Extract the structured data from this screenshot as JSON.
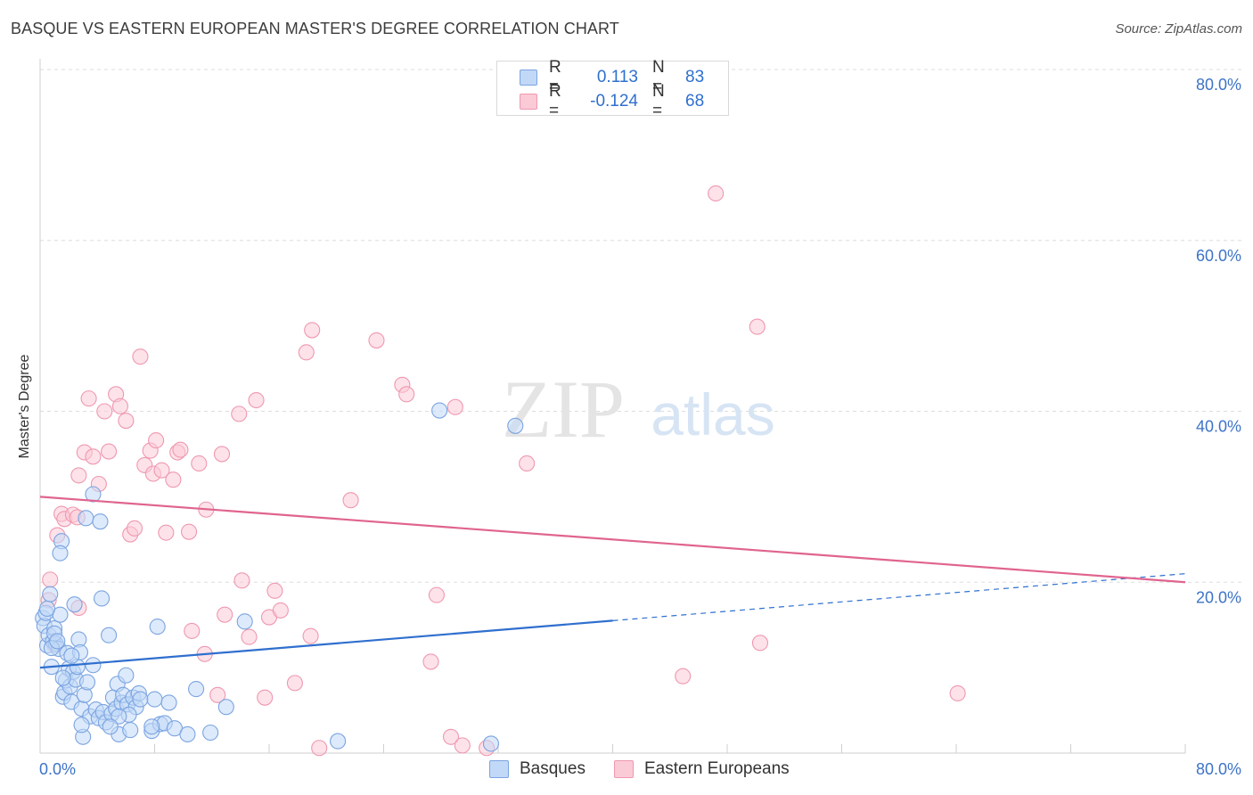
{
  "title": "BASQUE VS EASTERN EUROPEAN MASTER'S DEGREE CORRELATION CHART",
  "source": "Source: ZipAtlas.com",
  "watermark": {
    "zip": "ZIP",
    "atlas": "atlas"
  },
  "legend_top": [
    {
      "r_label": "R =",
      "r_value": "0.113",
      "n_label": "N =",
      "n_value": "83",
      "fill": "#c1d8f7",
      "stroke": "#7ba4e0"
    },
    {
      "r_label": "R =",
      "r_value": "-0.124",
      "n_label": "N =",
      "n_value": "68",
      "fill": "#fbcad7",
      "stroke": "#ef98b0"
    }
  ],
  "legend_bottom": [
    {
      "label": "Basques",
      "fill": "#c1d8f7",
      "stroke": "#7ba4e0"
    },
    {
      "label": "Eastern Europeans",
      "fill": "#fbcad7",
      "stroke": "#ef98b0"
    }
  ],
  "chart_data": {
    "type": "scatter",
    "title": "BASQUE VS EASTERN EUROPEAN MASTER'S DEGREE CORRELATION CHART",
    "xlabel": "",
    "ylabel": "Master's Degree",
    "xlim": [
      0,
      80
    ],
    "ylim": [
      0,
      80
    ],
    "x_tick_labels": [
      "0.0%",
      "80.0%"
    ],
    "y_tick_labels": [
      "20.0%",
      "40.0%",
      "60.0%",
      "80.0%"
    ],
    "y_ticks": [
      20,
      40,
      60,
      80
    ],
    "colors": {
      "basques": "#2f6fce",
      "eastern": "#e0648f",
      "axis_text": "#3d73c8"
    },
    "series": [
      {
        "name": "Basques",
        "color": "#7ba4e0",
        "fill": "#c1d8f7",
        "trend": {
          "x0": 0,
          "y0": 10.0,
          "x1": 40,
          "y1": 15.5,
          "dash_x1": 80,
          "dash_y1": 21.0,
          "color": "#2f6fce"
        },
        "points": [
          [
            0.2,
            15.8
          ],
          [
            0.3,
            14.9
          ],
          [
            0.4,
            16.4
          ],
          [
            0.5,
            12.6
          ],
          [
            0.6,
            13.8
          ],
          [
            0.7,
            18.6
          ],
          [
            0.8,
            10.1
          ],
          [
            0.9,
            13.1
          ],
          [
            1.0,
            14.6
          ],
          [
            1.1,
            12.8
          ],
          [
            1.3,
            12.2
          ],
          [
            1.4,
            16.2
          ],
          [
            1.5,
            24.8
          ],
          [
            1.4,
            23.4
          ],
          [
            1.6,
            6.6
          ],
          [
            1.7,
            7.1
          ],
          [
            1.8,
            8.5
          ],
          [
            1.9,
            11.7
          ],
          [
            2.0,
            9.9
          ],
          [
            2.1,
            7.8
          ],
          [
            2.2,
            6.0
          ],
          [
            2.3,
            9.5
          ],
          [
            2.4,
            17.4
          ],
          [
            2.5,
            8.6
          ],
          [
            2.6,
            10.1
          ],
          [
            2.7,
            13.3
          ],
          [
            2.8,
            11.8
          ],
          [
            2.9,
            5.2
          ],
          [
            3.0,
            1.9
          ],
          [
            3.1,
            6.8
          ],
          [
            3.2,
            27.5
          ],
          [
            3.3,
            8.3
          ],
          [
            3.5,
            4.3
          ],
          [
            3.7,
            30.3
          ],
          [
            3.9,
            5.1
          ],
          [
            4.1,
            4.1
          ],
          [
            4.3,
            18.1
          ],
          [
            4.4,
            4.8
          ],
          [
            4.6,
            3.6
          ],
          [
            4.8,
            13.8
          ],
          [
            5.0,
            4.6
          ],
          [
            5.1,
            6.5
          ],
          [
            5.3,
            5.2
          ],
          [
            5.4,
            8.1
          ],
          [
            5.5,
            2.2
          ],
          [
            5.7,
            5.9
          ],
          [
            5.8,
            6.8
          ],
          [
            6.0,
            9.1
          ],
          [
            6.1,
            5.7
          ],
          [
            6.3,
            2.7
          ],
          [
            6.5,
            6.5
          ],
          [
            6.7,
            5.4
          ],
          [
            6.9,
            7.0
          ],
          [
            7.0,
            6.3
          ],
          [
            7.8,
            2.6
          ],
          [
            8.0,
            6.3
          ],
          [
            8.2,
            14.8
          ],
          [
            8.4,
            3.4
          ],
          [
            8.7,
            3.5
          ],
          [
            9.4,
            2.9
          ],
          [
            10.3,
            2.2
          ],
          [
            10.9,
            7.5
          ],
          [
            11.9,
            2.4
          ],
          [
            13.0,
            5.4
          ],
          [
            14.3,
            15.4
          ],
          [
            20.8,
            1.4
          ],
          [
            27.9,
            40.1
          ],
          [
            33.2,
            38.3
          ],
          [
            31.5,
            1.1
          ],
          [
            4.2,
            27.1
          ],
          [
            1.0,
            14.0
          ],
          [
            0.8,
            12.3
          ],
          [
            2.2,
            11.4
          ],
          [
            3.7,
            10.3
          ],
          [
            6.2,
            4.5
          ],
          [
            2.9,
            3.3
          ],
          [
            7.8,
            3.1
          ],
          [
            5.5,
            4.3
          ],
          [
            1.6,
            8.8
          ],
          [
            4.9,
            3.1
          ],
          [
            1.2,
            13.1
          ],
          [
            0.5,
            16.9
          ],
          [
            9.0,
            5.9
          ]
        ]
      },
      {
        "name": "Eastern Europeans",
        "color": "#ef98b0",
        "fill": "#fbcad7",
        "trend": {
          "x0": 0,
          "y0": 30.0,
          "x1": 80,
          "y1": 20.0,
          "color": "#e0648f"
        },
        "points": [
          [
            0.7,
            20.3
          ],
          [
            0.6,
            17.9
          ],
          [
            1.0,
            12.7
          ],
          [
            1.2,
            25.5
          ],
          [
            1.5,
            28.0
          ],
          [
            1.7,
            27.4
          ],
          [
            2.3,
            27.9
          ],
          [
            2.6,
            27.6
          ],
          [
            2.7,
            32.5
          ],
          [
            3.1,
            35.2
          ],
          [
            3.4,
            41.5
          ],
          [
            3.7,
            34.7
          ],
          [
            4.1,
            31.5
          ],
          [
            4.5,
            40.0
          ],
          [
            4.8,
            35.3
          ],
          [
            5.3,
            42.0
          ],
          [
            5.6,
            40.6
          ],
          [
            6.0,
            38.9
          ],
          [
            6.3,
            25.6
          ],
          [
            6.6,
            26.3
          ],
          [
            7.0,
            46.4
          ],
          [
            7.3,
            33.7
          ],
          [
            7.7,
            35.4
          ],
          [
            7.9,
            32.7
          ],
          [
            8.1,
            36.6
          ],
          [
            8.5,
            33.1
          ],
          [
            8.8,
            25.8
          ],
          [
            9.3,
            32.0
          ],
          [
            9.6,
            35.2
          ],
          [
            9.8,
            35.5
          ],
          [
            10.4,
            25.9
          ],
          [
            10.6,
            14.3
          ],
          [
            11.1,
            33.9
          ],
          [
            11.5,
            11.6
          ],
          [
            11.6,
            28.5
          ],
          [
            12.4,
            6.8
          ],
          [
            12.7,
            35.0
          ],
          [
            12.9,
            16.2
          ],
          [
            13.9,
            39.7
          ],
          [
            14.1,
            20.2
          ],
          [
            14.6,
            13.6
          ],
          [
            15.1,
            41.3
          ],
          [
            15.7,
            6.5
          ],
          [
            16.0,
            15.9
          ],
          [
            16.4,
            19.0
          ],
          [
            16.8,
            16.7
          ],
          [
            17.8,
            8.2
          ],
          [
            18.6,
            46.9
          ],
          [
            19.0,
            49.5
          ],
          [
            18.9,
            13.7
          ],
          [
            19.5,
            0.6
          ],
          [
            21.7,
            29.6
          ],
          [
            23.5,
            48.3
          ],
          [
            25.3,
            43.1
          ],
          [
            25.6,
            42.0
          ],
          [
            27.3,
            10.7
          ],
          [
            27.7,
            18.5
          ],
          [
            28.7,
            1.9
          ],
          [
            29.0,
            40.5
          ],
          [
            29.5,
            0.9
          ],
          [
            31.2,
            0.6
          ],
          [
            34.0,
            33.9
          ],
          [
            44.9,
            9.0
          ],
          [
            47.2,
            65.5
          ],
          [
            50.1,
            49.9
          ],
          [
            50.3,
            12.9
          ],
          [
            64.1,
            7.0
          ],
          [
            2.7,
            17.0
          ]
        ]
      }
    ]
  }
}
